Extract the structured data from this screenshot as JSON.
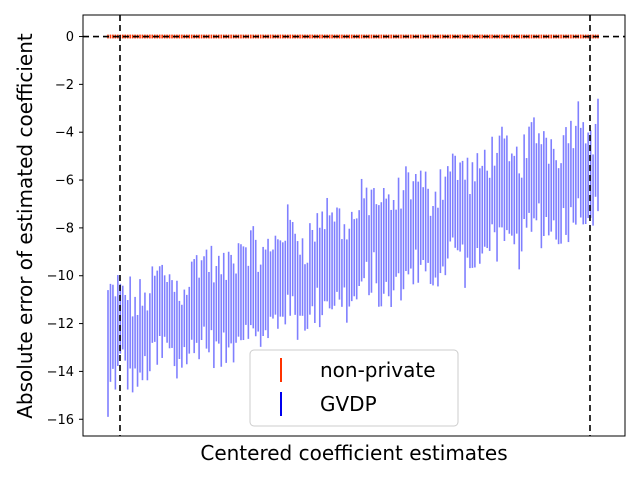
{
  "chart_data": {
    "type": "errorbar",
    "xlabel": "Centered coefficient estimates",
    "ylabel": "Absolute error of estimated coefficient",
    "ylim": [
      -16.7,
      0.9
    ],
    "yticks": [
      0,
      -2,
      -4,
      -6,
      -8,
      -10,
      -12,
      -14,
      -16
    ],
    "ytick_labels": [
      "0",
      "−2",
      "−4",
      "−6",
      "−8",
      "−10",
      "−12",
      "−14",
      "−16"
    ],
    "grid": false,
    "legend_position": "lower center",
    "reference_lines": {
      "horizontal_y": 0,
      "vertical_at": [
        "first estimate",
        "last estimate"
      ],
      "style": "dashed",
      "color": "#000000"
    },
    "n_estimates": 200,
    "series": [
      {
        "name": "non-private",
        "color": "#ff3300",
        "bar_low": -0.08,
        "bar_high": 0.08
      },
      {
        "name": "GVDP",
        "color": "#0000ee",
        "draw_color": "#7f7fff",
        "center_trend": {
          "start": -12.8,
          "end": -5.4
        },
        "half_width": {
          "start": 1.6,
          "end": 1.9
        },
        "first_bar": [
          -15.9,
          -10.6
        ],
        "last_bar": [
          -7.3,
          -2.6
        ]
      }
    ]
  }
}
